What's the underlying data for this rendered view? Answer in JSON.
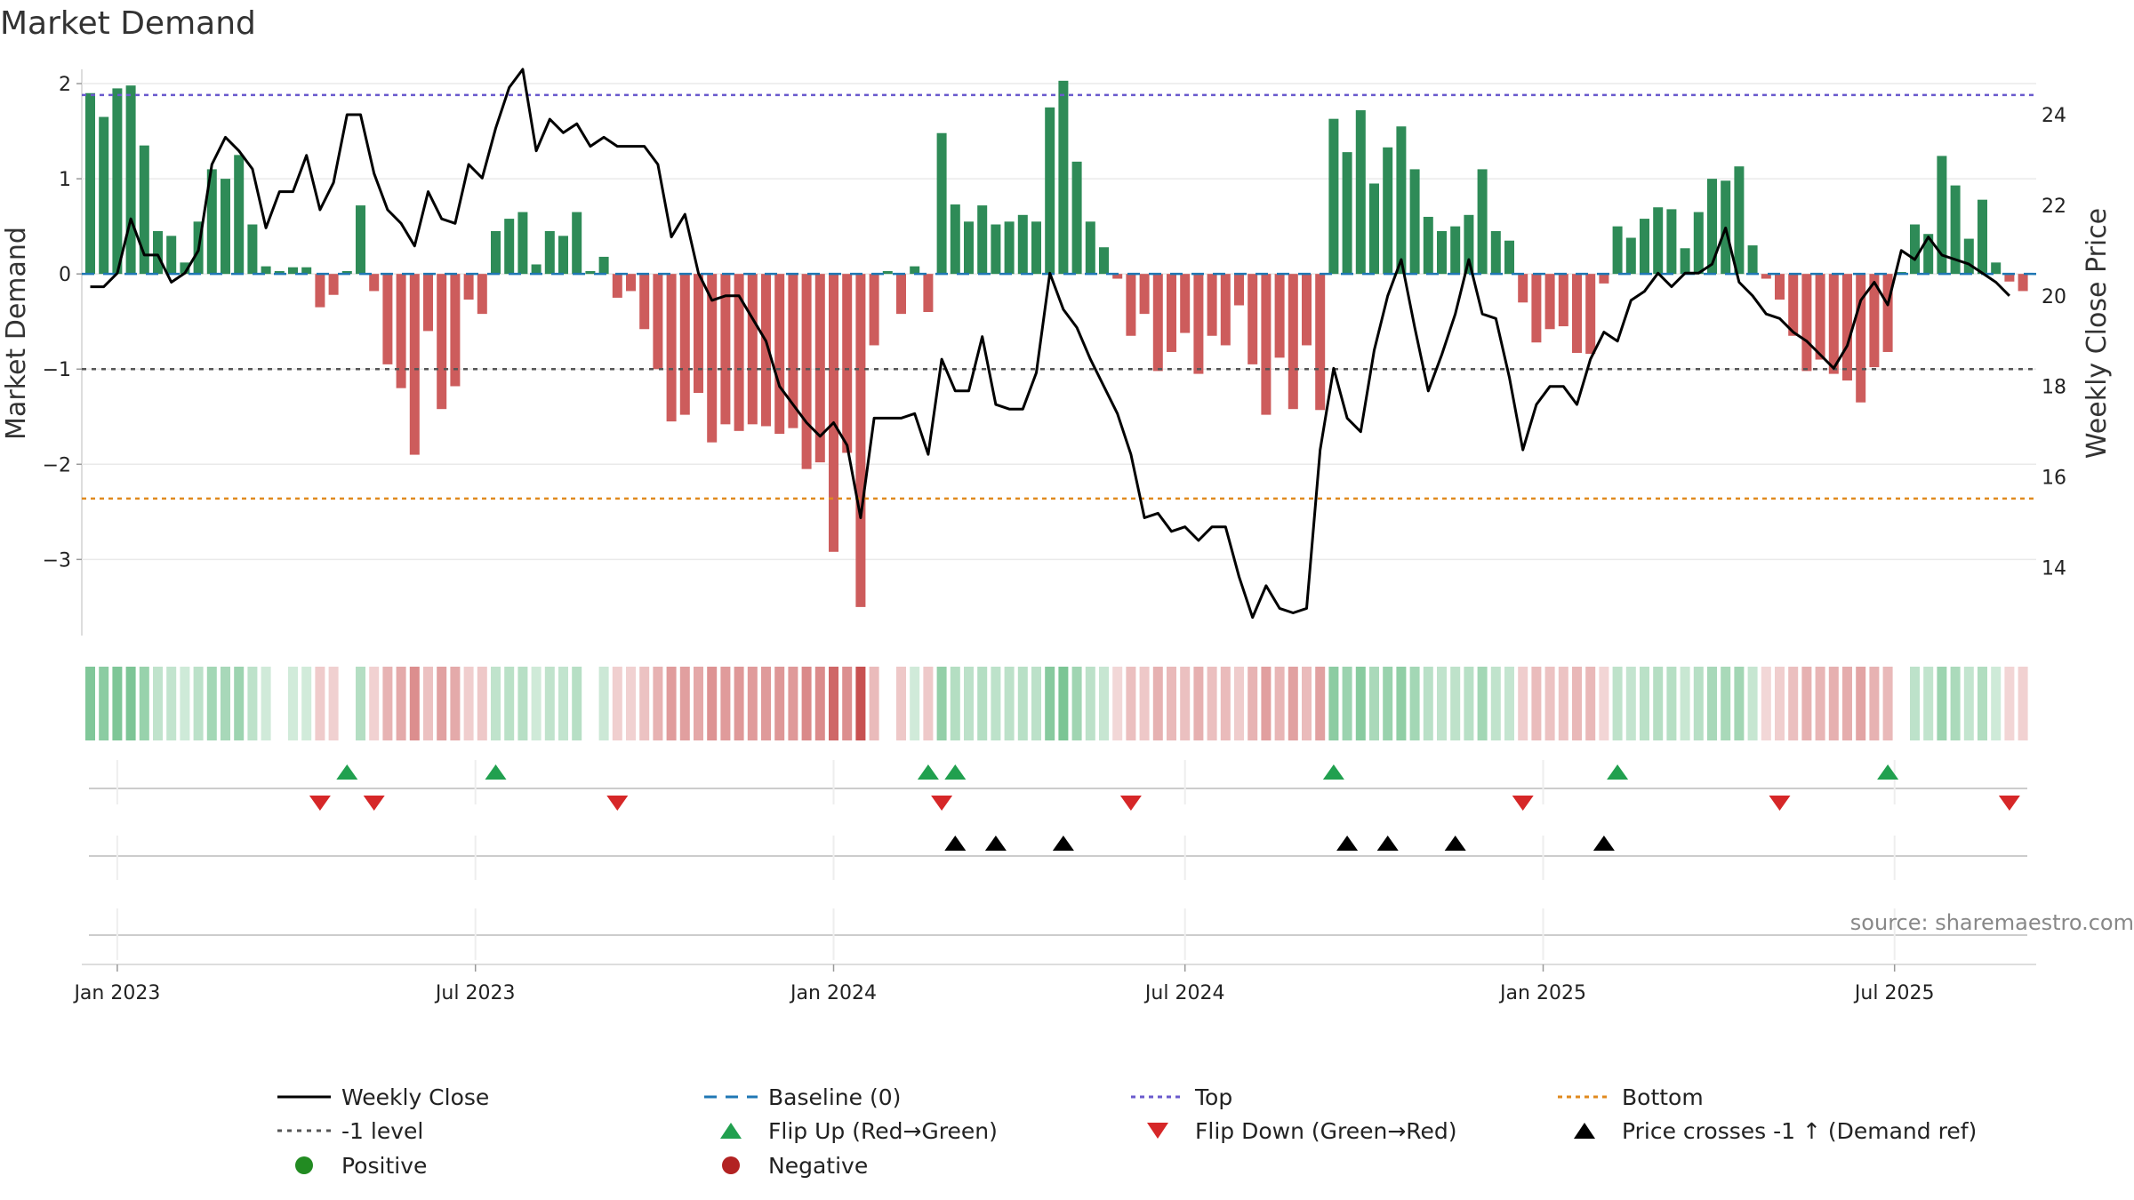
{
  "chart_data": {
    "type": "bar+line",
    "title": "Market Demand",
    "ylabel_left": "Market Demand",
    "ylabel_right": "Weekly Close Price",
    "source": "source: sharemaestro.com",
    "left_axis": {
      "ylim": [
        -3.8,
        2.15
      ],
      "ticks": [
        2,
        1,
        0,
        -1,
        -2,
        -3
      ],
      "tick_labels": [
        "2",
        "1",
        "0",
        "−1",
        "−2",
        "−3"
      ]
    },
    "right_axis": {
      "ylim": [
        12.5,
        25.0
      ],
      "ticks": [
        24,
        22,
        20,
        18,
        16,
        14
      ],
      "tick_labels": [
        "24",
        "22",
        "20",
        "18",
        "16",
        "14"
      ]
    },
    "x_axis": {
      "ticks": [
        {
          "week": 2,
          "label": "Jan 2023"
        },
        {
          "week": 28.5,
          "label": "Jul 2023"
        },
        {
          "week": 55,
          "label": "Jan 2024"
        },
        {
          "week": 81,
          "label": "Jul 2024"
        },
        {
          "week": 107.5,
          "label": "Jan 2025"
        },
        {
          "week": 133.5,
          "label": "Jul 2025"
        }
      ]
    },
    "reference_levels": {
      "top": 1.88,
      "bottom": -2.36,
      "minus_one": -1,
      "baseline": 0
    },
    "colors": {
      "positive": "#2e8b57",
      "negative": "#cd5c5c",
      "close": "#000000",
      "baseline": "#1f77b4",
      "top": "#6a5acd",
      "bottom": "#e08a1e",
      "minus_one": "#555555",
      "flip_up": "#21a04f",
      "flip_down": "#d62728",
      "cross": "#000000",
      "legend_positive": "#228b22",
      "legend_negative": "#b22222"
    },
    "demand": [
      1.9,
      1.65,
      1.95,
      1.98,
      1.35,
      0.45,
      0.4,
      0.12,
      0.55,
      1.1,
      1.0,
      1.25,
      0.52,
      0.08,
      0.03,
      0.07,
      0.07,
      -0.35,
      -0.22,
      0.03,
      0.72,
      -0.18,
      -0.95,
      -1.2,
      -1.9,
      -0.6,
      -1.42,
      -1.18,
      -0.27,
      -0.42,
      0.45,
      0.58,
      0.65,
      0.1,
      0.45,
      0.4,
      0.65,
      0.03,
      0.18,
      -0.25,
      -0.18,
      -0.58,
      -1.0,
      -1.55,
      -1.48,
      -1.25,
      -1.77,
      -1.58,
      -1.65,
      -1.58,
      -1.6,
      -1.68,
      -1.62,
      -2.05,
      -1.98,
      -2.92,
      -1.88,
      -3.5,
      -0.75,
      0.03,
      -0.42,
      0.08,
      -0.4,
      1.48,
      0.73,
      0.55,
      0.72,
      0.52,
      0.55,
      0.62,
      0.55,
      1.75,
      2.03,
      1.18,
      0.55,
      0.28,
      -0.05,
      -0.65,
      -0.42,
      -1.02,
      -0.82,
      -0.62,
      -1.05,
      -0.65,
      -0.75,
      -0.33,
      -0.95,
      -1.48,
      -0.88,
      -1.42,
      -0.75,
      -1.43,
      1.63,
      1.28,
      1.72,
      0.95,
      1.33,
      1.55,
      1.1,
      0.6,
      0.45,
      0.5,
      0.62,
      1.1,
      0.45,
      0.35,
      -0.3,
      -0.72,
      -0.58,
      -0.55,
      -0.83,
      -0.84,
      -0.1,
      0.5,
      0.38,
      0.58,
      0.7,
      0.68,
      0.27,
      0.65,
      1.0,
      0.98,
      1.13,
      0.3,
      -0.05,
      -0.27,
      -0.65,
      -1.02,
      -0.9,
      -1.05,
      -1.12,
      -1.35,
      -0.98,
      -0.82,
      0.02,
      0.52,
      0.42,
      1.24,
      0.93,
      0.37,
      0.78,
      0.12,
      -0.08,
      -0.18
    ],
    "close": [
      20.2,
      20.2,
      20.5,
      21.7,
      20.9,
      20.9,
      20.3,
      20.5,
      21.0,
      22.9,
      23.5,
      23.2,
      22.8,
      21.5,
      22.3,
      22.3,
      23.1,
      21.9,
      22.5,
      24.0,
      24.0,
      22.7,
      21.9,
      21.6,
      21.1,
      22.3,
      21.7,
      21.6,
      22.9,
      22.6,
      23.7,
      24.6,
      25.0,
      23.2,
      23.9,
      23.6,
      23.8,
      23.3,
      23.5,
      23.3,
      23.3,
      23.3,
      22.9,
      21.3,
      21.8,
      20.5,
      19.9,
      20.0,
      20.0,
      19.5,
      19.0,
      18.0,
      17.6,
      17.2,
      16.9,
      17.2,
      16.7,
      15.1,
      17.3,
      17.3,
      17.3,
      17.4,
      16.5,
      18.6,
      17.9,
      17.9,
      19.1,
      17.6,
      17.5,
      17.5,
      18.3,
      20.5,
      19.7,
      19.3,
      18.6,
      18.0,
      17.4,
      16.5,
      15.1,
      15.2,
      14.8,
      14.9,
      14.6,
      14.9,
      14.9,
      13.8,
      12.9,
      13.6,
      13.1,
      13.0,
      13.1,
      16.6,
      18.4,
      17.3,
      17.0,
      18.8,
      20.0,
      20.8,
      19.3,
      17.9,
      18.7,
      19.6,
      20.8,
      19.6,
      19.5,
      18.2,
      16.6,
      17.6,
      18.0,
      18.0,
      17.6,
      18.6,
      19.2,
      19.0,
      19.9,
      20.1,
      20.5,
      20.2,
      20.5,
      20.5,
      20.7,
      21.5,
      20.3,
      20.0,
      19.6,
      19.5,
      19.2,
      19.0,
      18.7,
      18.4,
      18.9,
      19.9,
      20.3,
      19.8,
      21.0,
      20.8,
      21.3,
      20.9,
      20.8,
      20.7,
      20.5,
      20.3,
      20.0
    ],
    "flip_up_weeks": [
      19,
      30,
      62,
      64,
      92,
      113,
      133
    ],
    "flip_down_weeks": [
      17,
      21,
      39,
      63,
      77,
      106,
      125,
      142
    ],
    "price_cross_weeks": [
      64,
      67,
      72,
      93,
      96,
      101,
      112
    ],
    "legend": [
      [
        "Weekly Close",
        "Baseline (0)",
        "Top",
        "Bottom"
      ],
      [
        "-1 level",
        "Flip Up (Red→Green)",
        "Flip Down (Green→Red)",
        "Price crosses -1 ↑ (Demand ref)"
      ],
      [
        "Positive",
        "Negative"
      ]
    ]
  }
}
